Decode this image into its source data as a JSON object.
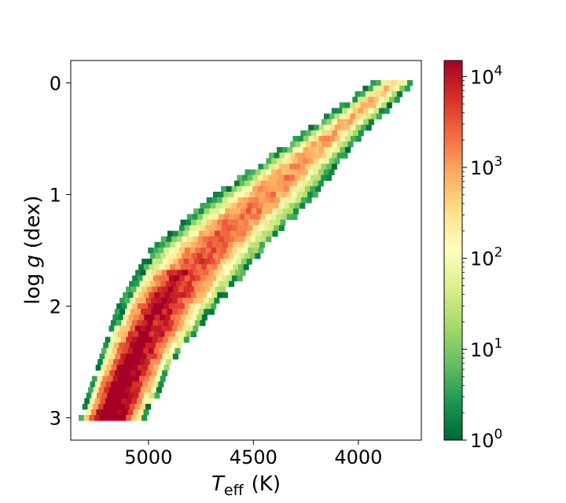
{
  "chart_data": {
    "type": "heatmap",
    "title": "",
    "xlabel": {
      "main": "T",
      "sub": "eff",
      "unit": "(K)"
    },
    "ylabel": {
      "prefix": "log",
      "var": "g",
      "unit": "(dex)"
    },
    "x_inverted": true,
    "y_inverted": true,
    "xlim": [
      5370,
      3700
    ],
    "ylim": [
      -0.2,
      3.2
    ],
    "x_ticks": [
      {
        "value": 5000,
        "label": "5000"
      },
      {
        "value": 4500,
        "label": "4500"
      },
      {
        "value": 4000,
        "label": "4000"
      }
    ],
    "y_ticks": [
      {
        "value": 0,
        "label": "0"
      },
      {
        "value": 1,
        "label": "1"
      },
      {
        "value": 2,
        "label": "2"
      },
      {
        "value": 3,
        "label": "3"
      }
    ],
    "grid": false,
    "colorbar": {
      "scale": "log",
      "colormap": "RdYlGn_r",
      "range": [
        1,
        15000
      ],
      "ticks": [
        {
          "base": "10",
          "exp": "0",
          "value": 1
        },
        {
          "base": "10",
          "exp": "1",
          "value": 10
        },
        {
          "base": "10",
          "exp": "2",
          "value": 100
        },
        {
          "base": "10",
          "exp": "3",
          "value": 1000
        },
        {
          "base": "10",
          "exp": "4",
          "value": 10000
        }
      ]
    },
    "colormap_stops": [
      "#006837",
      "#1a9850",
      "#66bd63",
      "#a6d96a",
      "#d9ef8b",
      "#ffffbf",
      "#fee08b",
      "#fdae61",
      "#f46d43",
      "#d73027",
      "#a50026"
    ],
    "bin_size": {
      "teff": 25,
      "logg": 0.05
    },
    "data_description": "2D histogram of stars over log g bins 0–3 and Teff bins ~5320–3720 K; counts peak (~1e4) along the cool-side lower-left band and fall off to ~1 at the edges.",
    "ridge": [
      {
        "logg": 0.0,
        "teff_min": 3930,
        "teff_max": 3730
      },
      {
        "logg": 0.5,
        "teff_min": 4300,
        "teff_max": 4000
      },
      {
        "logg": 1.0,
        "teff_min": 4680,
        "teff_max": 4200
      },
      {
        "logg": 1.5,
        "teff_min": 4990,
        "teff_max": 4450
      },
      {
        "logg": 2.0,
        "teff_min": 5140,
        "teff_max": 4680
      },
      {
        "logg": 2.5,
        "teff_min": 5230,
        "teff_max": 4880
      },
      {
        "logg": 3.0,
        "teff_min": 5320,
        "teff_max": 5010
      }
    ]
  }
}
